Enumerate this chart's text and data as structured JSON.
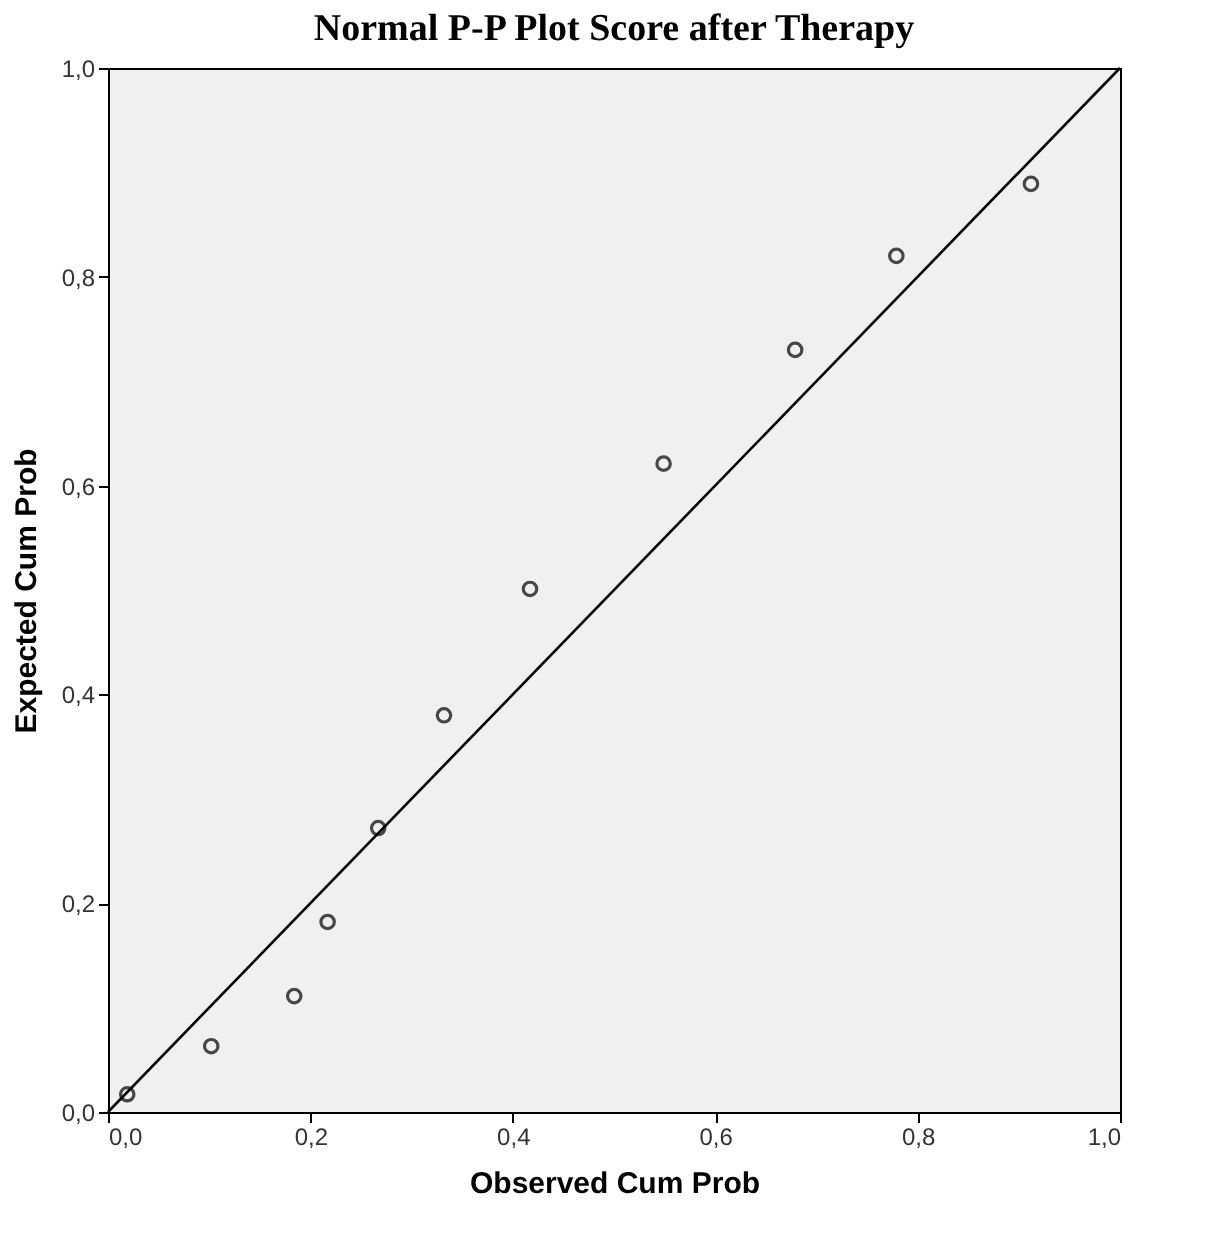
{
  "chart_data": {
    "type": "scatter",
    "title": "Normal P-P Plot Score after Therapy",
    "xlabel": "Observed Cum Prob",
    "ylabel": "Expected Cum Prob",
    "series": [
      {
        "color": "#000000",
        "marker": "circle",
        "x": [
          0.019,
          0.102,
          0.184,
          0.217,
          0.267,
          0.332,
          0.417,
          0.549,
          0.679,
          0.779,
          0.912
        ],
        "values": [
          0.017,
          0.063,
          0.111,
          0.182,
          0.272,
          0.38,
          0.501,
          0.621,
          0.73,
          0.82,
          0.889
        ]
      },
      {
        "type": "line",
        "color": "#000000",
        "x": [
          0,
          1
        ],
        "values": [
          0,
          1
        ]
      }
    ],
    "xlim": [
      0,
      1
    ],
    "ylim": [
      0,
      1
    ],
    "xticks": [
      {
        "value": 0,
        "label": "0,0"
      },
      {
        "value": 0.2,
        "label": "0,2"
      },
      {
        "value": 0.4,
        "label": "0,4"
      },
      {
        "value": 0.6,
        "label": "0,6"
      },
      {
        "value": 0.8,
        "label": "0,8"
      },
      {
        "value": 1,
        "label": "1,0"
      }
    ],
    "yticks": [
      {
        "value": 0,
        "label": "0,0"
      },
      {
        "value": 0.2,
        "label": "0,2"
      },
      {
        "value": 0.4,
        "label": "0,4"
      },
      {
        "value": 0.6,
        "label": "0,6"
      },
      {
        "value": 0.8,
        "label": "0,8"
      },
      {
        "value": 1,
        "label": "1,0"
      }
    ],
    "grid": false
  }
}
